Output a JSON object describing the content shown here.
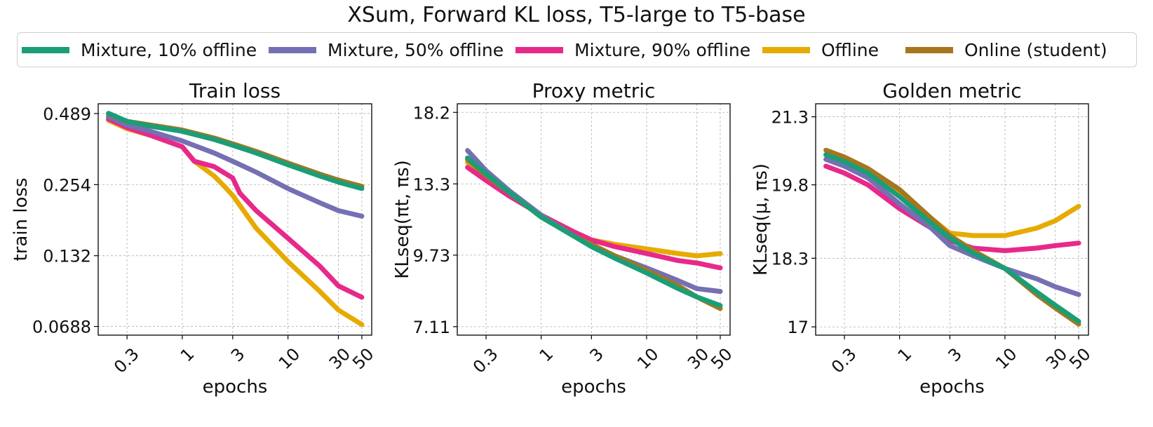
{
  "figure": {
    "suptitle": "XSum, Forward KL loss, T5-large to T5-base"
  },
  "legend": [
    {
      "label": "Mixture, 10% offline",
      "color": "#1b9e77"
    },
    {
      "label": "Mixture, 50% offline",
      "color": "#7570b3"
    },
    {
      "label": "Mixture, 90% offline",
      "color": "#e7298a"
    },
    {
      "label": "Offline",
      "color": "#e6ab02"
    },
    {
      "label": "Online (student)",
      "color": "#a6761d"
    }
  ],
  "chart_data": [
    {
      "type": "line",
      "title": "Train loss",
      "xlabel": "epochs",
      "ylabel": "train loss",
      "xscale": "log",
      "yscale": "log",
      "xlim": [
        0.16,
        62
      ],
      "ylim": [
        0.0635,
        0.535
      ],
      "xticks": [
        0.3,
        1,
        3,
        10,
        30,
        50
      ],
      "xtick_labels": [
        "0.3",
        "1",
        "3",
        "10",
        "30",
        "50"
      ],
      "yticks": [
        0.489,
        0.254,
        0.132,
        0.0688
      ],
      "ytick_labels": [
        "0.489",
        "0.254",
        "0.132",
        "0.0688"
      ],
      "grid": true,
      "series": [
        {
          "name": "Online (student)",
          "x": [
            0.2,
            0.3,
            0.5,
            1,
            2,
            3,
            5,
            10,
            20,
            30,
            50
          ],
          "y": [
            0.487,
            0.455,
            0.44,
            0.42,
            0.39,
            0.37,
            0.345,
            0.31,
            0.28,
            0.265,
            0.25
          ]
        },
        {
          "name": "Mixture, 10% offline",
          "x": [
            0.2,
            0.3,
            0.5,
            1,
            2,
            3,
            5,
            10,
            20,
            30,
            50
          ],
          "y": [
            0.49,
            0.455,
            0.435,
            0.415,
            0.385,
            0.365,
            0.34,
            0.305,
            0.275,
            0.26,
            0.245
          ]
        },
        {
          "name": "Mixture, 50% offline",
          "x": [
            0.2,
            0.3,
            0.5,
            1,
            2,
            3,
            5,
            10,
            20,
            30,
            50
          ],
          "y": [
            0.475,
            0.44,
            0.415,
            0.38,
            0.34,
            0.315,
            0.285,
            0.245,
            0.215,
            0.2,
            0.19
          ]
        },
        {
          "name": "Mixture, 90% offline",
          "x": [
            0.2,
            0.3,
            0.5,
            1,
            1.3,
            2,
            3,
            3.5,
            5,
            10,
            20,
            30,
            50
          ],
          "y": [
            0.465,
            0.43,
            0.4,
            0.36,
            0.315,
            0.3,
            0.27,
            0.235,
            0.2,
            0.155,
            0.12,
            0.1,
            0.09
          ]
        },
        {
          "name": "Offline",
          "x": [
            0.2,
            0.3,
            0.5,
            1,
            1.3,
            2,
            2.5,
            3,
            5,
            10,
            20,
            30,
            50
          ],
          "y": [
            0.46,
            0.425,
            0.4,
            0.36,
            0.315,
            0.275,
            0.25,
            0.23,
            0.17,
            0.125,
            0.095,
            0.08,
            0.07
          ]
        }
      ]
    },
    {
      "type": "line",
      "title": "Proxy metric",
      "xlabel": "epochs",
      "ylabel": "KLseq(πt, πs)",
      "xscale": "log",
      "yscale": "log",
      "xlim": [
        0.16,
        62
      ],
      "ylim": [
        6.85,
        18.9
      ],
      "xticks": [
        0.3,
        1,
        3,
        10,
        30,
        50
      ],
      "xtick_labels": [
        "0.3",
        "1",
        "3",
        "10",
        "30",
        "50"
      ],
      "yticks": [
        18.2,
        13.3,
        9.73,
        7.11
      ],
      "ytick_labels": [
        "18.2",
        "13.3",
        "9.73",
        "7.11"
      ],
      "grid": true,
      "series": [
        {
          "name": "Online (student)",
          "x": [
            0.2,
            0.3,
            0.5,
            1,
            2,
            3,
            5,
            10,
            20,
            30,
            50
          ],
          "y": [
            14.8,
            13.8,
            12.8,
            11.5,
            10.6,
            10.2,
            9.7,
            9.1,
            8.5,
            8.1,
            7.7
          ]
        },
        {
          "name": "Mixture, 10% offline",
          "x": [
            0.2,
            0.3,
            0.5,
            1,
            2,
            3,
            5,
            10,
            20,
            30,
            50
          ],
          "y": [
            14.9,
            13.9,
            12.8,
            11.5,
            10.6,
            10.1,
            9.6,
            9.0,
            8.4,
            8.1,
            7.8
          ]
        },
        {
          "name": "Mixture, 50% offline",
          "x": [
            0.2,
            0.3,
            0.5,
            1,
            2,
            3,
            5,
            10,
            20,
            30,
            50
          ],
          "y": [
            15.4,
            14.1,
            12.9,
            11.6,
            10.6,
            10.2,
            9.7,
            9.2,
            8.7,
            8.4,
            8.3
          ]
        },
        {
          "name": "Mixture, 90% offline",
          "x": [
            0.2,
            0.3,
            0.5,
            1,
            2,
            3,
            5,
            10,
            20,
            30,
            50
          ],
          "y": [
            14.3,
            13.5,
            12.6,
            11.6,
            10.8,
            10.4,
            10.1,
            9.8,
            9.5,
            9.4,
            9.2
          ]
        },
        {
          "name": "Offline",
          "x": [
            0.2,
            0.3,
            0.5,
            1,
            2,
            3,
            5,
            10,
            20,
            30,
            50
          ],
          "y": [
            14.6,
            13.8,
            12.7,
            11.6,
            10.8,
            10.4,
            10.2,
            10.0,
            9.8,
            9.7,
            9.8
          ]
        }
      ]
    },
    {
      "type": "line",
      "title": "Golden metric",
      "xlabel": "epochs",
      "ylabel": "KLseq(μ, πs)",
      "xscale": "log",
      "yscale": "log",
      "xlim": [
        0.16,
        62
      ],
      "ylim": [
        16.85,
        21.6
      ],
      "xticks": [
        0.3,
        1,
        3,
        10,
        30,
        50
      ],
      "xtick_labels": [
        "0.3",
        "1",
        "3",
        "10",
        "30",
        "50"
      ],
      "yticks": [
        21.3,
        19.8,
        18.3,
        17
      ],
      "ytick_labels": [
        "21.3",
        "19.8",
        "18.3",
        "17"
      ],
      "grid": true,
      "series": [
        {
          "name": "Online (student)",
          "x": [
            0.2,
            0.3,
            0.5,
            1,
            2,
            3,
            5,
            10,
            20,
            30,
            50
          ],
          "y": [
            20.55,
            20.4,
            20.15,
            19.7,
            19.1,
            18.75,
            18.45,
            18.1,
            17.6,
            17.35,
            17.05
          ]
        },
        {
          "name": "Mixture, 10% offline",
          "x": [
            0.2,
            0.3,
            0.5,
            1,
            2,
            3,
            5,
            10,
            20,
            30,
            50
          ],
          "y": [
            20.45,
            20.3,
            20.05,
            19.55,
            19.0,
            18.7,
            18.4,
            18.1,
            17.65,
            17.4,
            17.1
          ]
        },
        {
          "name": "Mixture, 50% offline",
          "x": [
            0.2,
            0.3,
            0.5,
            1,
            2,
            3,
            5,
            10,
            20,
            30,
            50
          ],
          "y": [
            20.35,
            20.2,
            19.95,
            19.4,
            18.9,
            18.55,
            18.35,
            18.1,
            17.9,
            17.75,
            17.6
          ]
        },
        {
          "name": "Mixture, 90% offline",
          "x": [
            0.2,
            0.3,
            0.5,
            1,
            2,
            3,
            5,
            10,
            20,
            30,
            50
          ],
          "y": [
            20.2,
            20.05,
            19.8,
            19.3,
            18.9,
            18.65,
            18.5,
            18.45,
            18.5,
            18.55,
            18.6
          ]
        },
        {
          "name": "Offline",
          "x": [
            0.2,
            0.3,
            0.5,
            1,
            2,
            3,
            5,
            10,
            20,
            30,
            50
          ],
          "y": [
            20.45,
            20.3,
            20.1,
            19.6,
            19.1,
            18.8,
            18.75,
            18.75,
            18.9,
            19.05,
            19.35
          ]
        }
      ]
    }
  ]
}
